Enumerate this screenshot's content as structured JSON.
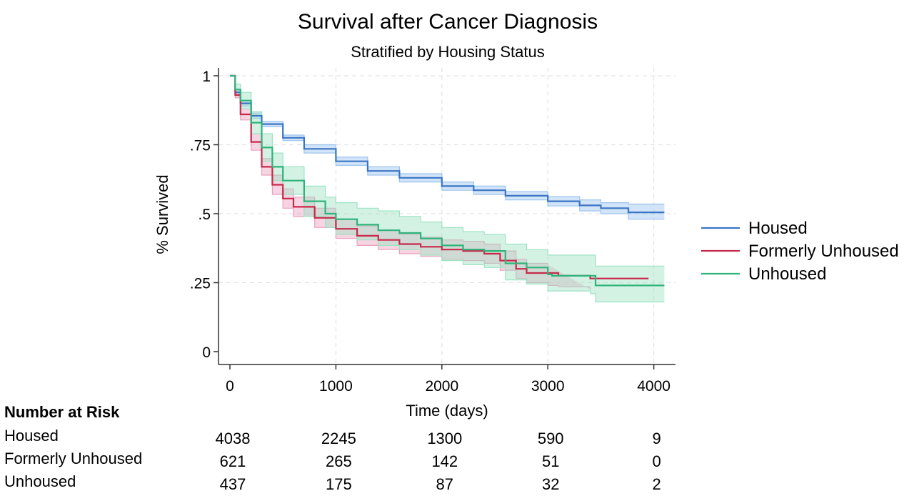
{
  "chart_data": {
    "type": "line",
    "title": "Survival after Cancer Diagnosis",
    "subtitle": "Stratified by Housing Status",
    "xlabel": "Time (days)",
    "ylabel": "% Survived",
    "xlim": [
      0,
      4100
    ],
    "ylim": [
      0,
      1
    ],
    "x_ticks": [
      0,
      1000,
      2000,
      3000,
      4000
    ],
    "x_tick_labels": [
      "0",
      "1000",
      "2000",
      "3000",
      "4000"
    ],
    "y_ticks": [
      0,
      0.25,
      0.5,
      0.75,
      1
    ],
    "y_tick_labels": [
      "0",
      ".25",
      ".5",
      ".75",
      "1"
    ],
    "grid": true,
    "legend_position": "right",
    "series": [
      {
        "name": "Housed",
        "color": "#3a75c4",
        "band_color": "#9cc3f0",
        "points": [
          [
            0,
            1
          ],
          [
            50,
            0.94
          ],
          [
            100,
            0.9
          ],
          [
            200,
            0.855
          ],
          [
            300,
            0.825
          ],
          [
            500,
            0.775
          ],
          [
            700,
            0.735
          ],
          [
            1000,
            0.69
          ],
          [
            1300,
            0.655
          ],
          [
            1600,
            0.63
          ],
          [
            2000,
            0.6
          ],
          [
            2300,
            0.585
          ],
          [
            2600,
            0.565
          ],
          [
            3000,
            0.545
          ],
          [
            3300,
            0.53
          ],
          [
            3500,
            0.52
          ],
          [
            3750,
            0.52
          ],
          [
            3760,
            0.505
          ],
          [
            4100,
            0.505
          ]
        ],
        "ci_upper": [
          [
            0,
            1
          ],
          [
            50,
            0.95
          ],
          [
            100,
            0.91
          ],
          [
            200,
            0.865
          ],
          [
            300,
            0.835
          ],
          [
            500,
            0.785
          ],
          [
            700,
            0.75
          ],
          [
            1000,
            0.705
          ],
          [
            1300,
            0.67
          ],
          [
            1600,
            0.645
          ],
          [
            2000,
            0.615
          ],
          [
            2300,
            0.6
          ],
          [
            2600,
            0.58
          ],
          [
            3000,
            0.562
          ],
          [
            3300,
            0.55
          ],
          [
            3500,
            0.54
          ],
          [
            3750,
            0.54
          ],
          [
            3760,
            0.535
          ],
          [
            4100,
            0.535
          ]
        ],
        "ci_lower": [
          [
            0,
            1
          ],
          [
            50,
            0.93
          ],
          [
            100,
            0.89
          ],
          [
            200,
            0.845
          ],
          [
            300,
            0.815
          ],
          [
            500,
            0.765
          ],
          [
            700,
            0.72
          ],
          [
            1000,
            0.675
          ],
          [
            1300,
            0.64
          ],
          [
            1600,
            0.615
          ],
          [
            2000,
            0.585
          ],
          [
            2300,
            0.57
          ],
          [
            2600,
            0.55
          ],
          [
            3000,
            0.528
          ],
          [
            3300,
            0.51
          ],
          [
            3500,
            0.5
          ],
          [
            3750,
            0.5
          ],
          [
            3760,
            0.48
          ],
          [
            4100,
            0.48
          ]
        ]
      },
      {
        "name": "Formerly Unhoused",
        "color": "#c8284a",
        "band_color": "#eba0bd",
        "points": [
          [
            0,
            1
          ],
          [
            50,
            0.93
          ],
          [
            100,
            0.86
          ],
          [
            200,
            0.76
          ],
          [
            300,
            0.67
          ],
          [
            400,
            0.605
          ],
          [
            500,
            0.555
          ],
          [
            600,
            0.525
          ],
          [
            800,
            0.485
          ],
          [
            1000,
            0.445
          ],
          [
            1200,
            0.42
          ],
          [
            1400,
            0.405
          ],
          [
            1600,
            0.39
          ],
          [
            1800,
            0.38
          ],
          [
            2000,
            0.37
          ],
          [
            2200,
            0.365
          ],
          [
            2400,
            0.355
          ],
          [
            2550,
            0.33
          ],
          [
            2700,
            0.3
          ],
          [
            2800,
            0.285
          ],
          [
            3000,
            0.285
          ],
          [
            3100,
            0.275
          ],
          [
            3400,
            0.265
          ],
          [
            3950,
            0.265
          ]
        ],
        "ci_upper": [
          [
            0,
            1
          ],
          [
            50,
            0.94
          ],
          [
            100,
            0.88
          ],
          [
            200,
            0.79
          ],
          [
            300,
            0.7
          ],
          [
            400,
            0.64
          ],
          [
            500,
            0.59
          ],
          [
            600,
            0.56
          ],
          [
            800,
            0.52
          ],
          [
            1000,
            0.48
          ],
          [
            1200,
            0.455
          ],
          [
            1400,
            0.44
          ],
          [
            1600,
            0.425
          ],
          [
            1800,
            0.415
          ],
          [
            2000,
            0.405
          ],
          [
            2200,
            0.4
          ],
          [
            2400,
            0.39
          ],
          [
            2550,
            0.365
          ],
          [
            2700,
            0.335
          ],
          [
            2800,
            0.32
          ],
          [
            3000,
            0.315
          ]
        ],
        "ci_lower": [
          [
            0,
            1
          ],
          [
            50,
            0.92
          ],
          [
            100,
            0.84
          ],
          [
            200,
            0.73
          ],
          [
            300,
            0.64
          ],
          [
            400,
            0.57
          ],
          [
            500,
            0.52
          ],
          [
            600,
            0.49
          ],
          [
            800,
            0.45
          ],
          [
            1000,
            0.41
          ],
          [
            1200,
            0.385
          ],
          [
            1400,
            0.37
          ],
          [
            1600,
            0.355
          ],
          [
            1800,
            0.345
          ],
          [
            2000,
            0.335
          ],
          [
            2200,
            0.33
          ],
          [
            2400,
            0.32
          ],
          [
            2550,
            0.295
          ],
          [
            2700,
            0.265
          ],
          [
            2800,
            0.25
          ],
          [
            3000,
            0.24
          ],
          [
            3100,
            0.235
          ],
          [
            3400,
            0.225
          ]
        ]
      },
      {
        "name": "Unhoused",
        "color": "#2fb37a",
        "band_color": "#9ee3c3",
        "points": [
          [
            0,
            1
          ],
          [
            50,
            0.95
          ],
          [
            100,
            0.91
          ],
          [
            200,
            0.83
          ],
          [
            300,
            0.74
          ],
          [
            400,
            0.67
          ],
          [
            500,
            0.62
          ],
          [
            700,
            0.545
          ],
          [
            900,
            0.5
          ],
          [
            1000,
            0.48
          ],
          [
            1200,
            0.46
          ],
          [
            1400,
            0.44
          ],
          [
            1600,
            0.43
          ],
          [
            1800,
            0.41
          ],
          [
            2000,
            0.385
          ],
          [
            2200,
            0.37
          ],
          [
            2400,
            0.365
          ],
          [
            2600,
            0.32
          ],
          [
            2800,
            0.305
          ],
          [
            3000,
            0.28
          ],
          [
            3040,
            0.275
          ],
          [
            3400,
            0.275
          ],
          [
            3450,
            0.24
          ],
          [
            4100,
            0.24
          ]
        ],
        "ci_upper": [
          [
            0,
            1
          ],
          [
            50,
            0.97
          ],
          [
            100,
            0.94
          ],
          [
            200,
            0.87
          ],
          [
            300,
            0.79
          ],
          [
            400,
            0.72
          ],
          [
            500,
            0.67
          ],
          [
            700,
            0.6
          ],
          [
            900,
            0.56
          ],
          [
            1000,
            0.54
          ],
          [
            1200,
            0.52
          ],
          [
            1400,
            0.51
          ],
          [
            1600,
            0.49
          ],
          [
            1800,
            0.47
          ],
          [
            2000,
            0.45
          ],
          [
            2200,
            0.435
          ],
          [
            2400,
            0.425
          ],
          [
            2600,
            0.39
          ],
          [
            2800,
            0.37
          ],
          [
            3000,
            0.35
          ],
          [
            3400,
            0.35
          ],
          [
            3450,
            0.31
          ],
          [
            4100,
            0.31
          ]
        ],
        "ci_lower": [
          [
            0,
            1
          ],
          [
            50,
            0.93
          ],
          [
            100,
            0.88
          ],
          [
            200,
            0.79
          ],
          [
            300,
            0.69
          ],
          [
            400,
            0.62
          ],
          [
            500,
            0.57
          ],
          [
            700,
            0.49
          ],
          [
            900,
            0.45
          ],
          [
            1000,
            0.425
          ],
          [
            1200,
            0.405
          ],
          [
            1400,
            0.385
          ],
          [
            1600,
            0.37
          ],
          [
            1800,
            0.35
          ],
          [
            2000,
            0.33
          ],
          [
            2200,
            0.315
          ],
          [
            2400,
            0.305
          ],
          [
            2600,
            0.26
          ],
          [
            2800,
            0.245
          ],
          [
            3000,
            0.22
          ],
          [
            3400,
            0.21
          ],
          [
            3450,
            0.18
          ],
          [
            4100,
            0.18
          ]
        ]
      }
    ]
  },
  "risk_table": {
    "heading": "Number at Risk",
    "rows": [
      {
        "label": "Housed",
        "values": [
          "4038",
          "2245",
          "1300",
          "590",
          "9"
        ]
      },
      {
        "label": "Formerly Unhoused",
        "values": [
          "621",
          "265",
          "142",
          "51",
          "0"
        ]
      },
      {
        "label": "Unhoused",
        "values": [
          "437",
          "175",
          "87",
          "32",
          "2"
        ]
      }
    ]
  }
}
